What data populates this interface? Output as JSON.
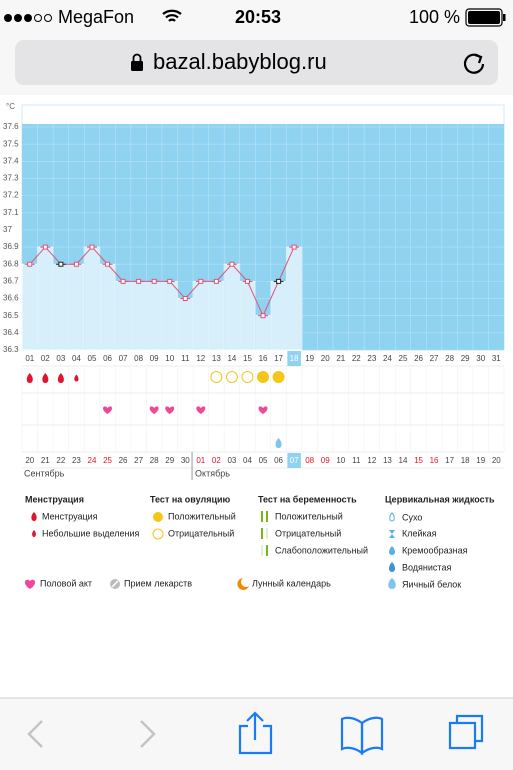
{
  "status_bar": {
    "carrier": "MegaFon",
    "time": "20:53",
    "battery": "100 %"
  },
  "address_bar": {
    "url": "bazal.babyblog.ru"
  },
  "chart_data": {
    "type": "line",
    "ylabel": "°C",
    "categories": [
      "01",
      "02",
      "03",
      "04",
      "05",
      "06",
      "07",
      "08",
      "09",
      "10",
      "11",
      "12",
      "13",
      "14",
      "15",
      "16",
      "17",
      "18",
      "19",
      "20",
      "21",
      "22",
      "23",
      "24",
      "25",
      "26",
      "27",
      "28",
      "29",
      "30",
      "31"
    ],
    "values": [
      36.8,
      36.9,
      36.8,
      36.8,
      36.9,
      36.8,
      36.7,
      36.7,
      36.7,
      36.7,
      36.6,
      36.7,
      36.7,
      36.8,
      36.7,
      36.5,
      36.7,
      36.9,
      null,
      null,
      null,
      null,
      null,
      null,
      null,
      null,
      null,
      null,
      null,
      null,
      null
    ],
    "marker_colors": [
      "#e0527a",
      "#e0527a",
      "#222222",
      "#e0527a",
      "#e0527a",
      "#e0527a",
      "#e0527a",
      "#e0527a",
      "#e0527a",
      "#e0527a",
      "#e0527a",
      "#e0527a",
      "#e0527a",
      "#e0527a",
      "#e0527a",
      "#e0527a",
      "#222222",
      "#e0527a",
      null,
      null,
      null,
      null,
      null,
      null,
      null,
      null,
      null,
      null,
      null,
      null,
      null
    ],
    "color": "#e0527a",
    "ylim": [
      36.3,
      37.6
    ],
    "yticks": [
      36.3,
      36.4,
      36.5,
      36.6,
      36.7,
      36.8,
      36.9,
      37,
      37.1,
      37.2,
      37.3,
      37.4,
      37.5,
      37.6
    ],
    "highlight_day": 18
  },
  "symbols": {
    "menstruation": [
      1,
      2,
      3
    ],
    "spotting": [
      4
    ],
    "ovulation_negative": [
      13,
      14,
      15
    ],
    "ovulation_positive": [
      16,
      17
    ],
    "intercourse": [
      6,
      9,
      10,
      12,
      16
    ],
    "egg_white": [
      17
    ]
  },
  "dates": {
    "labels": [
      "20",
      "21",
      "22",
      "23",
      "24",
      "25",
      "26",
      "27",
      "28",
      "29",
      "30",
      "01",
      "02",
      "03",
      "04",
      "05",
      "06",
      "07",
      "08",
      "09",
      "10",
      "11",
      "12",
      "13",
      "14",
      "15",
      "16",
      "17",
      "18",
      "19",
      "20"
    ],
    "weekend": [
      false,
      false,
      false,
      false,
      true,
      true,
      false,
      false,
      false,
      false,
      false,
      true,
      true,
      false,
      false,
      false,
      false,
      false,
      true,
      true,
      false,
      false,
      false,
      false,
      false,
      true,
      true,
      false,
      false,
      false,
      false
    ],
    "months": [
      "Сентябрь",
      "Октябрь"
    ]
  },
  "legend": {
    "menstruation": {
      "title": "Менструация",
      "items": [
        "Менструация",
        "Небольшие выделения"
      ]
    },
    "ovulation": {
      "title": "Тест на овуляцию",
      "items": [
        "Положительный",
        "Отрицательный"
      ]
    },
    "pregnancy": {
      "title": "Тест на беременность",
      "items": [
        "Положительный",
        "Отрицательный",
        "Слабоположительный"
      ]
    },
    "cervical": {
      "title": "Цервикальная жидкость",
      "items": [
        "Сухо",
        "Клейкая",
        "Кремообразная",
        "Водянистая",
        "Яичный белок"
      ]
    },
    "other": [
      "Половой акт",
      "Прием лекарств",
      "Лунный календарь"
    ]
  }
}
